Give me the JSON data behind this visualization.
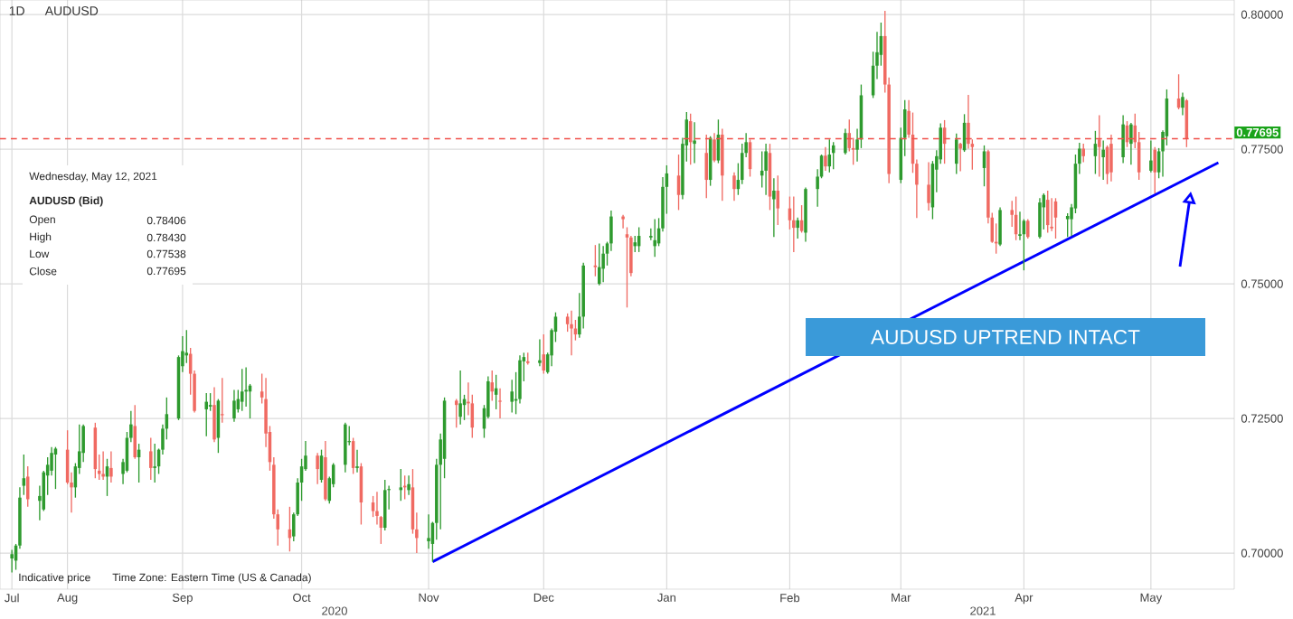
{
  "chart_data": {
    "type": "candlestick",
    "subtitle": "1D",
    "title": "AUDUSD",
    "x": [
      "2020-07-20",
      "2020-07-21",
      "2020-07-22",
      "2020-07-23",
      "2020-07-24",
      "2020-07-27",
      "2020-07-28",
      "2020-07-29",
      "2020-07-30",
      "2020-07-31",
      "2020-08-03",
      "2020-08-04",
      "2020-08-05",
      "2020-08-06",
      "2020-08-07",
      "2020-08-10",
      "2020-08-11",
      "2020-08-12",
      "2020-08-13",
      "2020-08-14",
      "2020-08-17",
      "2020-08-18",
      "2020-08-19",
      "2020-08-20",
      "2020-08-21",
      "2020-08-24",
      "2020-08-25",
      "2020-08-26",
      "2020-08-27",
      "2020-08-28",
      "2020-08-31",
      "2020-09-01",
      "2020-09-02",
      "2020-09-03",
      "2020-09-04",
      "2020-09-07",
      "2020-09-08",
      "2020-09-09",
      "2020-09-10",
      "2020-09-11",
      "2020-09-14",
      "2020-09-15",
      "2020-09-16",
      "2020-09-17",
      "2020-09-18",
      "2020-09-21",
      "2020-09-22",
      "2020-09-23",
      "2020-09-24",
      "2020-09-25",
      "2020-09-28",
      "2020-09-29",
      "2020-09-30",
      "2020-10-01",
      "2020-10-02",
      "2020-10-05",
      "2020-10-06",
      "2020-10-07",
      "2020-10-08",
      "2020-10-09",
      "2020-10-12",
      "2020-10-13",
      "2020-10-14",
      "2020-10-15",
      "2020-10-16",
      "2020-10-19",
      "2020-10-20",
      "2020-10-21",
      "2020-10-22",
      "2020-10-23",
      "2020-10-26",
      "2020-10-27",
      "2020-10-28",
      "2020-10-29",
      "2020-10-30",
      "2020-11-02",
      "2020-11-03",
      "2020-11-04",
      "2020-11-05",
      "2020-11-06",
      "2020-11-09",
      "2020-11-10",
      "2020-11-11",
      "2020-11-12",
      "2020-11-13",
      "2020-11-16",
      "2020-11-17",
      "2020-11-18",
      "2020-11-19",
      "2020-11-20",
      "2020-11-23",
      "2020-11-24",
      "2020-11-25",
      "2020-11-26",
      "2020-11-27",
      "2020-11-30",
      "2020-12-01",
      "2020-12-02",
      "2020-12-03",
      "2020-12-04",
      "2020-12-07",
      "2020-12-08",
      "2020-12-09",
      "2020-12-10",
      "2020-12-11",
      "2020-12-14",
      "2020-12-15",
      "2020-12-16",
      "2020-12-17",
      "2020-12-18",
      "2020-12-21",
      "2020-12-22",
      "2020-12-23",
      "2020-12-24",
      "2020-12-25",
      "2020-12-28",
      "2020-12-29",
      "2020-12-30",
      "2020-12-31",
      "2021-01-01",
      "2021-01-04",
      "2021-01-05",
      "2021-01-06",
      "2021-01-07",
      "2021-01-08",
      "2021-01-11",
      "2021-01-12",
      "2021-01-13",
      "2021-01-14",
      "2021-01-15",
      "2021-01-18",
      "2021-01-19",
      "2021-01-20",
      "2021-01-21",
      "2021-01-22",
      "2021-01-25",
      "2021-01-26",
      "2021-01-27",
      "2021-01-28",
      "2021-01-29",
      "2021-02-01",
      "2021-02-02",
      "2021-02-03",
      "2021-02-04",
      "2021-02-05",
      "2021-02-08",
      "2021-02-09",
      "2021-02-10",
      "2021-02-11",
      "2021-02-12",
      "2021-02-15",
      "2021-02-16",
      "2021-02-17",
      "2021-02-18",
      "2021-02-19",
      "2021-02-22",
      "2021-02-23",
      "2021-02-24",
      "2021-02-25",
      "2021-02-26",
      "2021-03-01",
      "2021-03-02",
      "2021-03-03",
      "2021-03-04",
      "2021-03-05",
      "2021-03-08",
      "2021-03-09",
      "2021-03-10",
      "2021-03-11",
      "2021-03-12",
      "2021-03-15",
      "2021-03-16",
      "2021-03-17",
      "2021-03-18",
      "2021-03-19",
      "2021-03-22",
      "2021-03-23",
      "2021-03-24",
      "2021-03-25",
      "2021-03-26",
      "2021-03-29",
      "2021-03-30",
      "2021-03-31",
      "2021-04-01",
      "2021-04-02",
      "2021-04-05",
      "2021-04-06",
      "2021-04-07",
      "2021-04-08",
      "2021-04-09",
      "2021-04-12",
      "2021-04-13",
      "2021-04-14",
      "2021-04-15",
      "2021-04-16",
      "2021-04-19",
      "2021-04-20",
      "2021-04-21",
      "2021-04-22",
      "2021-04-23",
      "2021-04-26",
      "2021-04-27",
      "2021-04-28",
      "2021-04-29",
      "2021-04-30",
      "2021-05-03",
      "2021-05-04",
      "2021-05-05",
      "2021-05-06",
      "2021-05-07",
      "2021-05-10",
      "2021-05-11",
      "2021-05-12"
    ],
    "ohlc": [
      [
        0.699,
        0.7006,
        0.6964,
        0.6998
      ],
      [
        0.6986,
        0.7017,
        0.6969,
        0.7014
      ],
      [
        0.7014,
        0.7122,
        0.7008,
        0.7103
      ],
      [
        0.7125,
        0.7183,
        0.7108,
        0.7139
      ],
      [
        0.7142,
        0.7161,
        0.7086,
        0.71
      ],
      [
        0.7097,
        0.7125,
        0.7061,
        0.7106
      ],
      [
        0.7081,
        0.7153,
        0.7078,
        0.715
      ],
      [
        0.7144,
        0.7178,
        0.7108,
        0.7164
      ],
      [
        0.7153,
        0.7197,
        0.7144,
        0.7186
      ],
      [
        0.7183,
        0.7197,
        0.7119,
        0.7194
      ],
      [
        0.7192,
        0.7228,
        0.7128,
        0.7131
      ],
      [
        0.7131,
        0.715,
        0.7075,
        0.7122
      ],
      [
        0.7122,
        0.7167,
        0.7103,
        0.7161
      ],
      [
        0.7158,
        0.7239,
        0.7147,
        0.7189
      ],
      [
        0.7186,
        0.7239,
        0.7169,
        0.7236
      ],
      [
        0.7233,
        0.7242,
        0.7139,
        0.7156
      ],
      [
        0.7153,
        0.7183,
        0.7136,
        0.7147
      ],
      [
        0.7147,
        0.7189,
        0.7136,
        0.7142
      ],
      [
        0.7142,
        0.7175,
        0.7106,
        0.7161
      ],
      [
        0.7158,
        0.7189,
        0.7131,
        0.7142
      ],
      [
        0.7147,
        0.7175,
        0.7128,
        0.7169
      ],
      [
        0.7153,
        0.7225,
        0.715,
        0.7214
      ],
      [
        0.7214,
        0.7264,
        0.7206,
        0.7239
      ],
      [
        0.7236,
        0.7275,
        0.7175,
        0.7178
      ],
      [
        0.7178,
        0.7203,
        0.7131,
        0.7192
      ],
      [
        0.7189,
        0.7214,
        0.7136,
        0.7158
      ],
      [
        0.7158,
        0.7203,
        0.7131,
        0.7161
      ],
      [
        0.7161,
        0.7194,
        0.7147,
        0.7192
      ],
      [
        0.7192,
        0.7239,
        0.7183,
        0.7231
      ],
      [
        0.7231,
        0.7289,
        0.7211,
        0.7258
      ],
      [
        0.725,
        0.7367,
        0.7247,
        0.7364
      ],
      [
        0.7347,
        0.7403,
        0.7336,
        0.7375
      ],
      [
        0.7367,
        0.7414,
        0.7353,
        0.7372
      ],
      [
        0.737,
        0.7381,
        0.7294,
        0.7333
      ],
      [
        0.7333,
        0.7339,
        0.7261,
        0.7264
      ],
      [
        0.7267,
        0.7297,
        0.7217,
        0.7281
      ],
      [
        0.7272,
        0.7297,
        0.7264,
        0.7275
      ],
      [
        0.7275,
        0.7308,
        0.7206,
        0.7211
      ],
      [
        0.7214,
        0.7286,
        0.7186,
        0.7283
      ],
      [
        0.7258,
        0.7325,
        0.7242,
        0.7256
      ],
      [
        0.725,
        0.7303,
        0.7244,
        0.7283
      ],
      [
        0.7267,
        0.7303,
        0.7261,
        0.7286
      ],
      [
        0.7281,
        0.7342,
        0.7264,
        0.73
      ],
      [
        0.73,
        0.7345,
        0.7272,
        0.7303
      ],
      [
        0.73,
        0.7314,
        0.725,
        0.7311
      ],
      [
        0.73,
        0.7333,
        0.7278,
        0.7289
      ],
      [
        0.7286,
        0.7325,
        0.7197,
        0.7222
      ],
      [
        0.7225,
        0.7236,
        0.7153,
        0.7169
      ],
      [
        0.7164,
        0.7178,
        0.7064,
        0.7072
      ],
      [
        0.7072,
        0.7081,
        0.7014,
        0.7044
      ],
      [
        0.7044,
        0.7086,
        0.7003,
        0.7028
      ],
      [
        0.7031,
        0.7075,
        0.7022,
        0.7072
      ],
      [
        0.7072,
        0.7139,
        0.7069,
        0.7131
      ],
      [
        0.7131,
        0.7175,
        0.7097,
        0.7161
      ],
      [
        0.7156,
        0.7208,
        0.7153,
        0.7181
      ],
      [
        0.7181,
        0.7186,
        0.7128,
        0.7156
      ],
      [
        0.7136,
        0.7192,
        0.7131,
        0.7181
      ],
      [
        0.7178,
        0.7208,
        0.7097,
        0.71
      ],
      [
        0.7097,
        0.7142,
        0.7092,
        0.7139
      ],
      [
        0.7128,
        0.7167,
        0.7122,
        0.7164
      ],
      [
        0.7164,
        0.7242,
        0.715,
        0.7239
      ],
      [
        0.7206,
        0.7236,
        0.72,
        0.7208
      ],
      [
        0.7208,
        0.7214,
        0.7147,
        0.7158
      ],
      [
        0.7158,
        0.7192,
        0.715,
        0.7161
      ],
      [
        0.7161,
        0.7167,
        0.7053,
        0.7094
      ],
      [
        0.7094,
        0.7106,
        0.7067,
        0.7078
      ],
      [
        0.7078,
        0.7114,
        0.7053,
        0.7069
      ],
      [
        0.7067,
        0.7069,
        0.7017,
        0.7047
      ],
      [
        0.7047,
        0.7136,
        0.7042,
        0.7117
      ],
      [
        0.7117,
        0.7125,
        0.7081,
        0.7119
      ],
      [
        0.7117,
        0.7156,
        0.7097,
        0.7122
      ],
      [
        0.7125,
        0.7144,
        0.71,
        0.7122
      ],
      [
        0.7117,
        0.7144,
        0.7108,
        0.7128
      ],
      [
        0.7122,
        0.7156,
        0.7036,
        0.7044
      ],
      [
        0.7044,
        0.7075,
        0.7,
        0.7028
      ],
      [
        0.7022,
        0.7072,
        0.7008,
        0.7028
      ],
      [
        0.7017,
        0.7058,
        0.6984,
        0.7056
      ],
      [
        0.7056,
        0.7175,
        0.7025,
        0.7164
      ],
      [
        0.7164,
        0.7222,
        0.7044,
        0.7211
      ],
      [
        0.7175,
        0.7289,
        0.7139,
        0.7283
      ],
      [
        0.7283,
        0.7286,
        0.7233,
        0.7275
      ],
      [
        0.7253,
        0.7339,
        0.7239,
        0.7278
      ],
      [
        0.7275,
        0.7294,
        0.7247,
        0.7286
      ],
      [
        0.7281,
        0.7317,
        0.7256,
        0.7278
      ],
      [
        0.7278,
        0.7294,
        0.7214,
        0.7233
      ],
      [
        0.7231,
        0.7275,
        0.7214,
        0.7269
      ],
      [
        0.7253,
        0.7328,
        0.725,
        0.7319
      ],
      [
        0.7317,
        0.7339,
        0.7283,
        0.73
      ],
      [
        0.7294,
        0.7331,
        0.7267,
        0.7306
      ],
      [
        0.7283,
        0.7306,
        0.725,
        0.7281
      ],
      [
        0.7281,
        0.7322,
        0.7261,
        0.73
      ],
      [
        0.7283,
        0.7336,
        0.7258,
        0.7286
      ],
      [
        0.7286,
        0.7367,
        0.7278,
        0.7358
      ],
      [
        0.7356,
        0.7372,
        0.7319,
        0.7364
      ],
      [
        0.7356,
        0.7372,
        0.735,
        0.7353
      ],
      [
        0.7353,
        0.7397,
        0.7347,
        0.7358
      ],
      [
        0.7369,
        0.7406,
        0.7333,
        0.7339
      ],
      [
        0.7336,
        0.7372,
        0.7333,
        0.7369
      ],
      [
        0.7367,
        0.7417,
        0.7347,
        0.7414
      ],
      [
        0.7411,
        0.7447,
        0.7392,
        0.7439
      ],
      [
        0.7439,
        0.7445,
        0.7411,
        0.7425
      ],
      [
        0.7425,
        0.745,
        0.7367,
        0.7417
      ],
      [
        0.7417,
        0.7433,
        0.7395,
        0.7406
      ],
      [
        0.7406,
        0.7483,
        0.74,
        0.7439
      ],
      [
        0.7439,
        0.7539,
        0.7417,
        0.7534
      ],
      [
        0.7534,
        0.7572,
        0.7514,
        0.7531
      ],
      [
        0.75,
        0.7575,
        0.7497,
        0.7531
      ],
      [
        0.7528,
        0.757,
        0.7503,
        0.7556
      ],
      [
        0.7556,
        0.7578,
        0.7534,
        0.7575
      ],
      [
        0.7575,
        0.7636,
        0.7561,
        0.7625
      ],
      [
        0.7625,
        0.7628,
        0.7603,
        0.762
      ],
      [
        0.7592,
        0.7605,
        0.7456,
        0.7586
      ],
      [
        0.7586,
        0.7589,
        0.7514,
        0.752
      ],
      [
        0.757,
        0.7589,
        0.7559,
        0.7577
      ],
      [
        0.757,
        0.7605,
        0.7559,
        0.7589
      ],
      [
        0.7586,
        0.7603,
        0.7581,
        0.7589
      ],
      [
        0.757,
        0.762,
        0.755,
        0.7581
      ],
      [
        0.7575,
        0.7622,
        0.757,
        0.7603
      ],
      [
        0.7603,
        0.7698,
        0.7597,
        0.768
      ],
      [
        0.768,
        0.772,
        0.763,
        0.7705
      ],
      [
        0.7701,
        0.774,
        0.7637,
        0.7665
      ],
      [
        0.7665,
        0.7771,
        0.7657,
        0.776
      ],
      [
        0.7757,
        0.7819,
        0.7727,
        0.7805
      ],
      [
        0.7802,
        0.7816,
        0.7721,
        0.7763
      ],
      [
        0.776,
        0.78,
        0.7724,
        0.7766
      ],
      [
        0.7743,
        0.7777,
        0.7659,
        0.7693
      ],
      [
        0.7693,
        0.7774,
        0.7682,
        0.7771
      ],
      [
        0.7768,
        0.778,
        0.7726,
        0.7729
      ],
      [
        0.7729,
        0.7805,
        0.7724,
        0.7777
      ],
      [
        0.7777,
        0.7788,
        0.7654,
        0.7701
      ],
      [
        0.7701,
        0.7707,
        0.7654,
        0.7676
      ],
      [
        0.7676,
        0.7724,
        0.7665,
        0.7693
      ],
      [
        0.7693,
        0.776,
        0.7685,
        0.7743
      ],
      [
        0.7743,
        0.778,
        0.7735,
        0.7763
      ],
      [
        0.7763,
        0.7768,
        0.7699,
        0.7713
      ],
      [
        0.7701,
        0.7746,
        0.7679,
        0.771
      ],
      [
        0.771,
        0.776,
        0.7665,
        0.7746
      ],
      [
        0.7743,
        0.776,
        0.7637,
        0.7662
      ],
      [
        0.7657,
        0.7696,
        0.7587,
        0.7673
      ],
      [
        0.7673,
        0.7701,
        0.7609,
        0.764
      ],
      [
        0.764,
        0.7662,
        0.7601,
        0.7618
      ],
      [
        0.7618,
        0.7662,
        0.7559,
        0.7604
      ],
      [
        0.7604,
        0.7623,
        0.7584,
        0.7618
      ],
      [
        0.7618,
        0.7646,
        0.7595,
        0.7598
      ],
      [
        0.7595,
        0.7679,
        0.7578,
        0.7676
      ],
      [
        0.7676,
        0.7713,
        0.7643,
        0.7699
      ],
      [
        0.7699,
        0.774,
        0.7696,
        0.7738
      ],
      [
        0.7738,
        0.7754,
        0.771,
        0.7718
      ],
      [
        0.7718,
        0.7768,
        0.7707,
        0.774
      ],
      [
        0.7743,
        0.7763,
        0.7713,
        0.7757
      ],
      [
        0.7743,
        0.7788,
        0.774,
        0.778
      ],
      [
        0.778,
        0.7805,
        0.7746,
        0.7752
      ],
      [
        0.7752,
        0.7771,
        0.7721,
        0.7749
      ],
      [
        0.7749,
        0.7788,
        0.7727,
        0.7768
      ],
      [
        0.7768,
        0.787,
        0.7752,
        0.785
      ],
      [
        0.785,
        0.7931,
        0.7845,
        0.7905
      ],
      [
        0.7905,
        0.7968,
        0.788,
        0.793
      ],
      [
        0.7925,
        0.7985,
        0.7905,
        0.796
      ],
      [
        0.796,
        0.8007,
        0.7855,
        0.787
      ],
      [
        0.787,
        0.7883,
        0.7687,
        0.7704
      ],
      [
        0.7693,
        0.779,
        0.7687,
        0.7771
      ],
      [
        0.7771,
        0.7841,
        0.7737,
        0.7824
      ],
      [
        0.7821,
        0.7841,
        0.7771,
        0.7777
      ],
      [
        0.7777,
        0.7818,
        0.7706,
        0.7723
      ],
      [
        0.7723,
        0.7731,
        0.7622,
        0.7684
      ],
      [
        0.7684,
        0.7726,
        0.7636,
        0.765
      ],
      [
        0.7642,
        0.7728,
        0.762,
        0.7723
      ],
      [
        0.7712,
        0.7748,
        0.767,
        0.7737
      ],
      [
        0.7731,
        0.7798,
        0.7723,
        0.779
      ],
      [
        0.779,
        0.7804,
        0.7723,
        0.776
      ],
      [
        0.7723,
        0.7779,
        0.7704,
        0.7768
      ],
      [
        0.776,
        0.7762,
        0.7709,
        0.7751
      ],
      [
        0.7748,
        0.7815,
        0.7745,
        0.7799
      ],
      [
        0.7799,
        0.7851,
        0.7751,
        0.776
      ],
      [
        0.776,
        0.7768,
        0.7712,
        0.7754
      ],
      [
        0.7715,
        0.7757,
        0.7681,
        0.7746
      ],
      [
        0.7746,
        0.7749,
        0.7612,
        0.7623
      ],
      [
        0.7623,
        0.7632,
        0.7576,
        0.7578
      ],
      [
        0.7578,
        0.7612,
        0.7556,
        0.7575
      ],
      [
        0.7573,
        0.7642,
        0.757,
        0.7637
      ],
      [
        0.7637,
        0.7654,
        0.7606,
        0.7628
      ],
      [
        0.7628,
        0.7662,
        0.7581,
        0.7592
      ],
      [
        0.7589,
        0.7634,
        0.7581,
        0.7592
      ],
      [
        0.7592,
        0.762,
        0.7525,
        0.7617
      ],
      [
        0.7617,
        0.762,
        0.7584,
        0.7587
      ],
      [
        0.7587,
        0.7659,
        0.7584,
        0.7651
      ],
      [
        0.7642,
        0.7668,
        0.7601,
        0.7665
      ],
      [
        0.7656,
        0.7673,
        0.7595,
        0.7609
      ],
      [
        0.7606,
        0.7659,
        0.7598,
        0.7603
      ],
      [
        0.7653,
        0.7659,
        0.7584,
        0.7623
      ],
      [
        0.762,
        0.7631,
        0.7587,
        0.7626
      ],
      [
        0.762,
        0.7648,
        0.7589,
        0.7642
      ],
      [
        0.764,
        0.774,
        0.7631,
        0.7723
      ],
      [
        0.7723,
        0.7762,
        0.7704,
        0.7751
      ],
      [
        0.7751,
        0.776,
        0.7726,
        0.7737
      ],
      [
        0.7737,
        0.7784,
        0.7704,
        0.776
      ],
      [
        0.7768,
        0.7813,
        0.7699,
        0.7754
      ],
      [
        0.7735,
        0.7766,
        0.7693,
        0.7749
      ],
      [
        0.7754,
        0.7757,
        0.7685,
        0.7704
      ],
      [
        0.776,
        0.7777,
        0.769,
        0.7707
      ],
      [
        0.7735,
        0.7813,
        0.7724,
        0.7796
      ],
      [
        0.7794,
        0.7802,
        0.7754,
        0.7763
      ],
      [
        0.776,
        0.7799,
        0.7721,
        0.7796
      ],
      [
        0.7794,
        0.7816,
        0.7752,
        0.7763
      ],
      [
        0.7763,
        0.7782,
        0.7693,
        0.7707
      ],
      [
        0.771,
        0.7766,
        0.7707,
        0.7729
      ],
      [
        0.7749,
        0.7754,
        0.7668,
        0.7707
      ],
      [
        0.7707,
        0.7752,
        0.7696,
        0.7746
      ],
      [
        0.7746,
        0.7785,
        0.7699,
        0.7782
      ],
      [
        0.7774,
        0.7861,
        0.7757,
        0.7844
      ],
      [
        0.7844,
        0.7889,
        0.7824,
        0.7827
      ],
      [
        0.7827,
        0.7855,
        0.7813,
        0.7847
      ],
      [
        0.78406,
        0.7843,
        0.77538,
        0.77695
      ]
    ],
    "series": [
      {
        "type": "line",
        "color": "#0000ff",
        "x": [
          "2020-11-03",
          "2021-05-20"
        ],
        "values": [
          0.6984,
          0.7725
        ]
      }
    ],
    "xlim": [
      "2020-07-17",
      "2021-05-24"
    ],
    "xticks": [
      {
        "value": "2020-07-20",
        "label": "Jul"
      },
      {
        "value": "2020-08-03",
        "label": "Aug"
      },
      {
        "value": "2020-09-01",
        "label": "Sep"
      },
      {
        "value": "2020-10-01",
        "label": "Oct"
      },
      {
        "value": "2020-11-02",
        "label": "Nov"
      },
      {
        "value": "2020-12-01",
        "label": "Dec"
      },
      {
        "value": "2021-01-01",
        "label": "Jan"
      },
      {
        "value": "2021-02-01",
        "label": "Feb"
      },
      {
        "value": "2021-03-01",
        "label": "Mar"
      },
      {
        "value": "2021-04-01",
        "label": "Apr"
      },
      {
        "value": "2021-05-03",
        "label": "May"
      }
    ],
    "ylim": [
      0.6933,
      0.8027
    ],
    "yticks": [
      {
        "value": 0.7,
        "label": "0.70000"
      },
      {
        "value": 0.725,
        "label": "0.72500"
      },
      {
        "value": 0.75,
        "label": "0.75000"
      },
      {
        "value": 0.775,
        "label": "0.77500"
      },
      {
        "value": 0.8,
        "label": "0.80000"
      }
    ],
    "grid": true,
    "ref_lines": [
      {
        "axis": "y",
        "value": 0.77695,
        "label": "0.77695",
        "color": "#f0504a",
        "line_style": "dashed"
      }
    ],
    "annotations": [
      "Wednesday, May 12, 2021",
      "AUDUSD (Bid)",
      "Open",
      "0.78406",
      "High",
      "0.78430",
      "Low",
      "0.77538",
      "Close",
      "0.77695",
      "Indicative price",
      "Time Zone: Eastern Time (US & Canada)",
      "AUDUSD UPTREND  INTACT",
      "2020",
      "2021"
    ]
  }
}
